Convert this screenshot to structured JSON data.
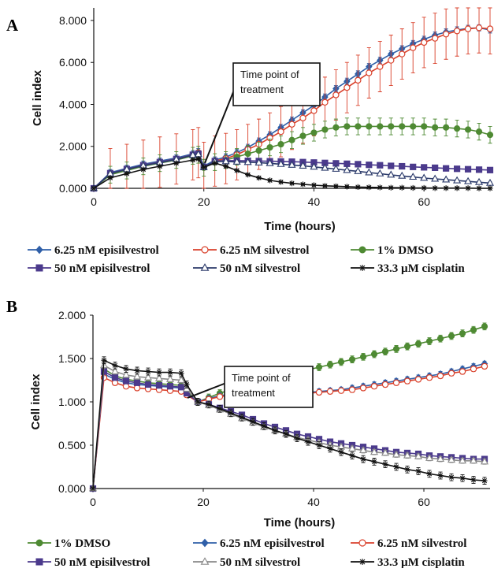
{
  "chart_data": [
    {
      "panel": "A",
      "type": "line",
      "xlabel": "Time (hours)",
      "ylabel": "Cell index",
      "xlim": [
        0,
        72
      ],
      "ylim": [
        0,
        8.6
      ],
      "xticks": [
        0,
        20,
        40,
        60
      ],
      "xtick_labels": [
        "0",
        "20",
        "40",
        "60"
      ],
      "yticks": [
        0,
        2,
        4,
        6,
        8
      ],
      "ytick_labels": [
        "0.000",
        "2.000",
        "4.000",
        "6.000",
        "8.000"
      ],
      "annotation": [
        "Time point of",
        "treatment"
      ],
      "legend_position": "bottom",
      "series": [
        {
          "name": "6.25 nM episilvestrol",
          "color": "#2f5fa8",
          "marker": "diamond-filled",
          "x": [
            0,
            3,
            6,
            9,
            12,
            15,
            18,
            19,
            20,
            22,
            24,
            26,
            28,
            30,
            32,
            34,
            36,
            38,
            40,
            42,
            44,
            46,
            48,
            50,
            52,
            54,
            56,
            58,
            60,
            62,
            64,
            66,
            68,
            70,
            72
          ],
          "y": [
            0,
            0.75,
            0.95,
            1.15,
            1.3,
            1.45,
            1.65,
            1.75,
            1.05,
            1.35,
            1.5,
            1.7,
            1.95,
            2.25,
            2.55,
            2.9,
            3.25,
            3.6,
            3.95,
            4.35,
            4.75,
            5.1,
            5.45,
            5.8,
            6.1,
            6.4,
            6.65,
            6.9,
            7.1,
            7.3,
            7.45,
            7.55,
            7.62,
            7.65,
            7.55
          ],
          "err": 0.15
        },
        {
          "name": "6.25 nM silvestrol",
          "color": "#d9412b",
          "marker": "circle-open",
          "x": [
            0,
            3,
            6,
            9,
            12,
            15,
            18,
            19,
            20,
            22,
            24,
            26,
            28,
            30,
            32,
            34,
            36,
            38,
            40,
            42,
            44,
            46,
            48,
            50,
            52,
            54,
            56,
            58,
            60,
            62,
            64,
            66,
            68,
            70,
            72
          ],
          "y": [
            0,
            0.7,
            0.9,
            1.1,
            1.25,
            1.4,
            1.6,
            1.7,
            1.0,
            1.3,
            1.42,
            1.6,
            1.85,
            2.1,
            2.4,
            2.7,
            3.05,
            3.35,
            3.7,
            4.1,
            4.45,
            4.8,
            5.15,
            5.5,
            5.8,
            6.1,
            6.4,
            6.7,
            6.95,
            7.15,
            7.35,
            7.5,
            7.6,
            7.65,
            7.6
          ],
          "err": 1.2
        },
        {
          "name": "1% DMSO",
          "color": "#4e8a33",
          "marker": "circle-filled",
          "x": [
            0,
            3,
            6,
            9,
            12,
            15,
            18,
            19,
            20,
            22,
            24,
            26,
            28,
            30,
            32,
            34,
            36,
            38,
            40,
            42,
            44,
            46,
            48,
            50,
            52,
            54,
            56,
            58,
            60,
            62,
            64,
            66,
            68,
            70,
            72
          ],
          "y": [
            0,
            0.65,
            0.85,
            1.05,
            1.2,
            1.35,
            1.55,
            1.6,
            0.98,
            1.25,
            1.35,
            1.5,
            1.65,
            1.8,
            1.95,
            2.1,
            2.3,
            2.5,
            2.65,
            2.8,
            2.9,
            2.95,
            2.95,
            2.95,
            2.95,
            2.95,
            2.95,
            2.95,
            2.95,
            2.9,
            2.9,
            2.85,
            2.8,
            2.7,
            2.55
          ],
          "err": 0.4
        },
        {
          "name": "50 nM episilvestrol",
          "color": "#4b3a8c",
          "marker": "square-filled",
          "x": [
            0,
            3,
            6,
            9,
            12,
            15,
            18,
            19,
            20,
            22,
            24,
            26,
            28,
            30,
            32,
            34,
            36,
            38,
            40,
            42,
            44,
            46,
            48,
            50,
            52,
            54,
            56,
            58,
            60,
            62,
            64,
            66,
            68,
            70,
            72
          ],
          "y": [
            0,
            0.72,
            0.92,
            1.1,
            1.25,
            1.4,
            1.6,
            1.65,
            1.02,
            1.3,
            1.32,
            1.32,
            1.31,
            1.3,
            1.29,
            1.28,
            1.27,
            1.25,
            1.23,
            1.21,
            1.19,
            1.17,
            1.15,
            1.12,
            1.1,
            1.07,
            1.05,
            1.02,
            1.0,
            0.98,
            0.95,
            0.93,
            0.91,
            0.89,
            0.87
          ],
          "err": 0.05
        },
        {
          "name": "50 nM silvestrol",
          "color": "#2b3a6a",
          "marker": "triangle-open",
          "x": [
            0,
            3,
            6,
            9,
            12,
            15,
            18,
            19,
            20,
            22,
            24,
            26,
            28,
            30,
            32,
            34,
            36,
            38,
            40,
            42,
            44,
            46,
            48,
            50,
            52,
            54,
            56,
            58,
            60,
            62,
            64,
            66,
            68,
            70,
            72
          ],
          "y": [
            0,
            0.7,
            0.9,
            1.08,
            1.22,
            1.38,
            1.58,
            1.62,
            1.0,
            1.28,
            1.28,
            1.26,
            1.24,
            1.22,
            1.19,
            1.15,
            1.11,
            1.07,
            1.02,
            0.97,
            0.92,
            0.86,
            0.81,
            0.75,
            0.7,
            0.64,
            0.59,
            0.54,
            0.49,
            0.45,
            0.41,
            0.37,
            0.33,
            0.29,
            0.25
          ],
          "err": 0.05
        },
        {
          "name": "33.3 µM cisplatin",
          "color": "#111111",
          "marker": "asterisk",
          "x": [
            0,
            3,
            6,
            9,
            12,
            15,
            18,
            19,
            20,
            22,
            24,
            26,
            28,
            30,
            32,
            34,
            36,
            38,
            40,
            42,
            44,
            46,
            48,
            50,
            52,
            54,
            56,
            58,
            60,
            62,
            64,
            66,
            68,
            70,
            72
          ],
          "y": [
            0,
            0.5,
            0.7,
            0.9,
            1.05,
            1.2,
            1.35,
            1.4,
            1.0,
            1.2,
            1.05,
            0.85,
            0.65,
            0.5,
            0.38,
            0.3,
            0.24,
            0.19,
            0.15,
            0.12,
            0.1,
            0.08,
            0.06,
            0.05,
            0.04,
            0.03,
            0.03,
            0.02,
            0.02,
            0.01,
            0.01,
            0.01,
            0.01,
            0.0,
            0.0
          ],
          "err": 0.04
        }
      ]
    },
    {
      "panel": "B",
      "type": "line",
      "xlabel": "Time (hours)",
      "ylabel": "Cell index",
      "xlim": [
        0,
        72
      ],
      "ylim": [
        0,
        2.0
      ],
      "xticks": [
        0,
        20,
        40,
        60
      ],
      "xtick_labels": [
        "0",
        "20",
        "40",
        "60"
      ],
      "yticks": [
        0,
        0.5,
        1.0,
        1.5,
        2.0
      ],
      "ytick_labels": [
        "0.000",
        "0.500",
        "1.000",
        "1.500",
        "2.000"
      ],
      "annotation": [
        "Time point of",
        "treatment"
      ],
      "legend_position": "bottom",
      "series": [
        {
          "name": "1% DMSO",
          "color": "#4e8a33",
          "marker": "circle-filled",
          "x": [
            0,
            2,
            4,
            6,
            8,
            10,
            12,
            14,
            16,
            17,
            19,
            21,
            23,
            25,
            27,
            29,
            31,
            33,
            35,
            37,
            39,
            41,
            43,
            45,
            47,
            49,
            51,
            53,
            55,
            57,
            59,
            61,
            63,
            65,
            67,
            69,
            71
          ],
          "y": [
            0,
            1.38,
            1.3,
            1.26,
            1.24,
            1.22,
            1.21,
            1.2,
            1.19,
            1.12,
            1.0,
            1.05,
            1.1,
            1.14,
            1.18,
            1.22,
            1.25,
            1.28,
            1.31,
            1.34,
            1.37,
            1.4,
            1.43,
            1.46,
            1.49,
            1.52,
            1.55,
            1.58,
            1.61,
            1.64,
            1.67,
            1.7,
            1.73,
            1.76,
            1.79,
            1.83,
            1.87
          ],
          "err": 0.04
        },
        {
          "name": "6.25 nM episilvestrol",
          "color": "#2f5fa8",
          "marker": "diamond-filled",
          "x": [
            0,
            2,
            4,
            6,
            8,
            10,
            12,
            14,
            16,
            17,
            19,
            21,
            23,
            25,
            27,
            29,
            31,
            33,
            35,
            37,
            39,
            41,
            43,
            45,
            47,
            49,
            51,
            53,
            55,
            57,
            59,
            61,
            63,
            65,
            67,
            69,
            71
          ],
          "y": [
            0,
            1.32,
            1.26,
            1.22,
            1.2,
            1.19,
            1.18,
            1.17,
            1.16,
            1.1,
            1.0,
            1.04,
            1.07,
            1.09,
            1.1,
            1.11,
            1.11,
            1.11,
            1.11,
            1.11,
            1.11,
            1.12,
            1.13,
            1.14,
            1.16,
            1.18,
            1.2,
            1.22,
            1.24,
            1.26,
            1.28,
            1.3,
            1.32,
            1.35,
            1.38,
            1.41,
            1.44
          ],
          "err": 0.03
        },
        {
          "name": "6.25 nM silvestrol",
          "color": "#d9412b",
          "marker": "circle-open",
          "x": [
            0,
            2,
            4,
            6,
            8,
            10,
            12,
            14,
            16,
            17,
            19,
            21,
            23,
            25,
            27,
            29,
            31,
            33,
            35,
            37,
            39,
            41,
            43,
            45,
            47,
            49,
            51,
            53,
            55,
            57,
            59,
            61,
            63,
            65,
            67,
            69,
            71
          ],
          "y": [
            0,
            1.28,
            1.22,
            1.18,
            1.16,
            1.15,
            1.14,
            1.13,
            1.12,
            1.08,
            1.0,
            1.03,
            1.06,
            1.08,
            1.09,
            1.1,
            1.1,
            1.1,
            1.1,
            1.1,
            1.1,
            1.11,
            1.12,
            1.13,
            1.14,
            1.16,
            1.18,
            1.2,
            1.22,
            1.24,
            1.26,
            1.28,
            1.3,
            1.33,
            1.35,
            1.38,
            1.41
          ],
          "err": 0.03
        },
        {
          "name": "50 nM episilvestrol",
          "color": "#4b3a8c",
          "marker": "square-filled",
          "x": [
            0,
            2,
            4,
            6,
            8,
            10,
            12,
            14,
            16,
            17,
            19,
            21,
            23,
            25,
            27,
            29,
            31,
            33,
            35,
            37,
            39,
            41,
            43,
            45,
            47,
            49,
            51,
            53,
            55,
            57,
            59,
            61,
            63,
            65,
            67,
            69,
            71
          ],
          "y": [
            0,
            1.35,
            1.28,
            1.24,
            1.22,
            1.2,
            1.19,
            1.18,
            1.17,
            1.1,
            1.0,
            0.97,
            0.93,
            0.89,
            0.85,
            0.8,
            0.75,
            0.71,
            0.67,
            0.63,
            0.6,
            0.57,
            0.54,
            0.52,
            0.5,
            0.48,
            0.46,
            0.44,
            0.42,
            0.41,
            0.4,
            0.38,
            0.37,
            0.36,
            0.35,
            0.34,
            0.34
          ],
          "err": 0.03
        },
        {
          "name": "50 nM silvestrol",
          "color": "#8a8a8a",
          "marker": "triangle-open",
          "x": [
            0,
            2,
            4,
            6,
            8,
            10,
            12,
            14,
            16,
            17,
            19,
            21,
            23,
            25,
            27,
            29,
            31,
            33,
            35,
            37,
            39,
            41,
            43,
            45,
            47,
            49,
            51,
            53,
            55,
            57,
            59,
            61,
            63,
            65,
            67,
            69,
            71
          ],
          "y": [
            0,
            1.42,
            1.35,
            1.31,
            1.29,
            1.28,
            1.27,
            1.26,
            1.25,
            1.15,
            1.0,
            0.96,
            0.91,
            0.86,
            0.81,
            0.76,
            0.71,
            0.67,
            0.63,
            0.59,
            0.56,
            0.53,
            0.5,
            0.48,
            0.46,
            0.44,
            0.42,
            0.41,
            0.39,
            0.38,
            0.37,
            0.35,
            0.34,
            0.33,
            0.32,
            0.32,
            0.31
          ],
          "err": 0.03
        },
        {
          "name": "33.3 µM cisplatin",
          "color": "#111111",
          "marker": "asterisk",
          "x": [
            0,
            2,
            4,
            6,
            8,
            10,
            12,
            14,
            16,
            17,
            19,
            21,
            23,
            25,
            27,
            29,
            31,
            33,
            35,
            37,
            39,
            41,
            43,
            45,
            47,
            49,
            51,
            53,
            55,
            57,
            59,
            61,
            63,
            65,
            67,
            69,
            71
          ],
          "y": [
            0,
            1.48,
            1.42,
            1.38,
            1.36,
            1.35,
            1.34,
            1.34,
            1.33,
            1.2,
            1.0,
            0.97,
            0.92,
            0.87,
            0.82,
            0.77,
            0.72,
            0.67,
            0.63,
            0.58,
            0.54,
            0.5,
            0.46,
            0.42,
            0.38,
            0.34,
            0.31,
            0.28,
            0.25,
            0.22,
            0.2,
            0.17,
            0.15,
            0.13,
            0.12,
            0.1,
            0.09
          ],
          "err": 0.04
        }
      ]
    }
  ]
}
